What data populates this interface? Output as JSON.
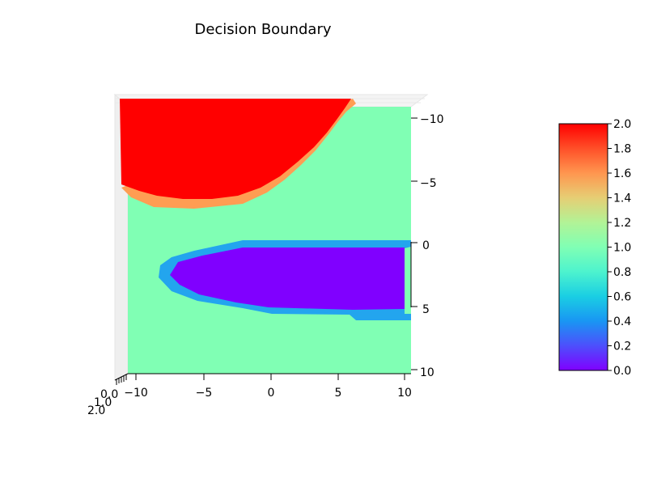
{
  "chart_data": [
    {
      "type": "surface",
      "title": "Decision Boundary",
      "xlabel": "",
      "ylabel": "",
      "zlabel": "",
      "x_ticks": [
        "−10",
        "−5",
        "0",
        "5",
        "10"
      ],
      "y_ticks": [
        "−10",
        "−5",
        "0",
        "5",
        "10"
      ],
      "z_ticks": [
        "2.0",
        "1.0",
        "0.0"
      ],
      "xlim": [
        -10,
        10
      ],
      "ylim": [
        -10,
        10
      ],
      "zlim": [
        0,
        2
      ],
      "classes": [
        0,
        1,
        2
      ],
      "regions": [
        {
          "class": 2,
          "description": "upper-left cap",
          "x_range": [
            -10.5,
            6
          ],
          "y_range": [
            -11,
            -3.3
          ]
        },
        {
          "class": 0,
          "description": "horizontal wedge",
          "x_range": [
            -8.5,
            10
          ],
          "y_range": [
            -0.3,
            5.5
          ]
        },
        {
          "class": 1,
          "description": "background",
          "x_range": [
            -10,
            10
          ],
          "y_range": [
            -11,
            10
          ]
        }
      ],
      "colormap": "rainbow",
      "colors": {
        "class0": "#8000ff",
        "class1": "#80ffb4",
        "class2": "#ff0000"
      }
    },
    {
      "type": "colorbar",
      "ticks": [
        "0.0",
        "0.2",
        "0.4",
        "0.6",
        "0.8",
        "1.0",
        "1.2",
        "1.4",
        "1.6",
        "1.8",
        "2.0"
      ],
      "range": [
        0,
        2
      ],
      "colormap": "rainbow"
    }
  ]
}
